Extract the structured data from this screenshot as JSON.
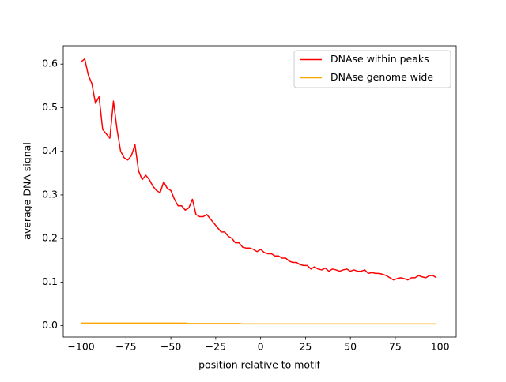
{
  "chart_data": {
    "type": "line",
    "xlabel": "position relative to motif",
    "ylabel": "average DNA signal",
    "x": [
      -100,
      -98,
      -96,
      -94,
      -92,
      -90,
      -88,
      -86,
      -84,
      -82,
      -80,
      -78,
      -76,
      -74,
      -72,
      -70,
      -68,
      -66,
      -64,
      -62,
      -60,
      -58,
      -56,
      -54,
      -52,
      -50,
      -48,
      -46,
      -44,
      -42,
      -40,
      -38,
      -36,
      -34,
      -32,
      -30,
      -28,
      -26,
      -24,
      -22,
      -20,
      -18,
      -16,
      -14,
      -12,
      -10,
      -8,
      -6,
      -4,
      -2,
      0,
      2,
      4,
      6,
      8,
      10,
      12,
      14,
      16,
      18,
      20,
      22,
      24,
      26,
      28,
      30,
      32,
      34,
      36,
      38,
      40,
      42,
      44,
      46,
      48,
      50,
      52,
      54,
      56,
      58,
      60,
      62,
      64,
      66,
      68,
      70,
      72,
      74,
      76,
      78,
      80,
      82,
      84,
      86,
      88,
      90,
      92,
      94,
      96,
      98
    ],
    "series": [
      {
        "name": "DNAse within peaks",
        "color": "#ff0000",
        "values": [
          0.605,
          0.612,
          0.575,
          0.555,
          0.51,
          0.525,
          0.45,
          0.44,
          0.43,
          0.515,
          0.45,
          0.4,
          0.385,
          0.38,
          0.39,
          0.415,
          0.355,
          0.335,
          0.345,
          0.335,
          0.32,
          0.31,
          0.305,
          0.33,
          0.315,
          0.31,
          0.29,
          0.275,
          0.275,
          0.265,
          0.27,
          0.29,
          0.255,
          0.25,
          0.25,
          0.255,
          0.245,
          0.235,
          0.225,
          0.215,
          0.215,
          0.205,
          0.2,
          0.19,
          0.19,
          0.18,
          0.178,
          0.178,
          0.175,
          0.17,
          0.175,
          0.168,
          0.165,
          0.165,
          0.16,
          0.16,
          0.155,
          0.155,
          0.148,
          0.145,
          0.145,
          0.14,
          0.138,
          0.138,
          0.13,
          0.135,
          0.13,
          0.128,
          0.132,
          0.125,
          0.13,
          0.128,
          0.125,
          0.128,
          0.13,
          0.125,
          0.128,
          0.125,
          0.125,
          0.128,
          0.12,
          0.122,
          0.12,
          0.12,
          0.118,
          0.115,
          0.11,
          0.105,
          0.108,
          0.11,
          0.108,
          0.105,
          0.11,
          0.11,
          0.115,
          0.112,
          0.11,
          0.115,
          0.115,
          0.11
        ]
      },
      {
        "name": "DNAse genome wide",
        "color": "#ffa500",
        "values": [
          0.006,
          0.006,
          0.006,
          0.006,
          0.006,
          0.006,
          0.006,
          0.006,
          0.006,
          0.006,
          0.006,
          0.006,
          0.006,
          0.006,
          0.006,
          0.006,
          0.006,
          0.006,
          0.006,
          0.006,
          0.006,
          0.006,
          0.006,
          0.006,
          0.006,
          0.006,
          0.006,
          0.006,
          0.006,
          0.006,
          0.005,
          0.005,
          0.005,
          0.005,
          0.005,
          0.005,
          0.005,
          0.005,
          0.005,
          0.005,
          0.005,
          0.005,
          0.005,
          0.005,
          0.005,
          0.004,
          0.004,
          0.004,
          0.004,
          0.004,
          0.004,
          0.004,
          0.004,
          0.004,
          0.004,
          0.004,
          0.004,
          0.004,
          0.004,
          0.004,
          0.004,
          0.004,
          0.004,
          0.004,
          0.004,
          0.004,
          0.004,
          0.004,
          0.004,
          0.004,
          0.004,
          0.004,
          0.004,
          0.004,
          0.004,
          0.004,
          0.004,
          0.004,
          0.004,
          0.004,
          0.004,
          0.004,
          0.004,
          0.004,
          0.004,
          0.004,
          0.004,
          0.004,
          0.004,
          0.004,
          0.004,
          0.004,
          0.004,
          0.004,
          0.004,
          0.004,
          0.004,
          0.004,
          0.004,
          0.004
        ]
      }
    ],
    "xlim": [
      -109.95,
      108.95
    ],
    "ylim": [
      -0.026,
      0.642
    ],
    "xticks": [
      {
        "value": -100,
        "label": "−100"
      },
      {
        "value": -75,
        "label": "−75"
      },
      {
        "value": -50,
        "label": "−50"
      },
      {
        "value": -25,
        "label": "−25"
      },
      0,
      25,
      50,
      75,
      100
    ],
    "yticks": [
      {
        "value": 0,
        "label": "0.0"
      },
      0.1,
      0.2,
      0.3,
      0.4,
      0.5,
      0.6
    ],
    "legend": "upper right",
    "grid": false
  }
}
